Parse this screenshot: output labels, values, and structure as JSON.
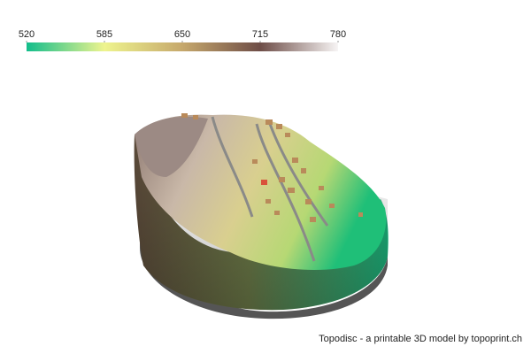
{
  "colorbar": {
    "lim": [
      520,
      780
    ],
    "ticks": [
      520,
      585,
      650,
      715,
      780
    ],
    "colors": [
      "#12bd8b",
      "#eef48e",
      "#c6a86c",
      "#6e4d47",
      "#f7f5f5"
    ]
  },
  "caption": "Topodisc - a printable 3D model by topoprint.ch"
}
